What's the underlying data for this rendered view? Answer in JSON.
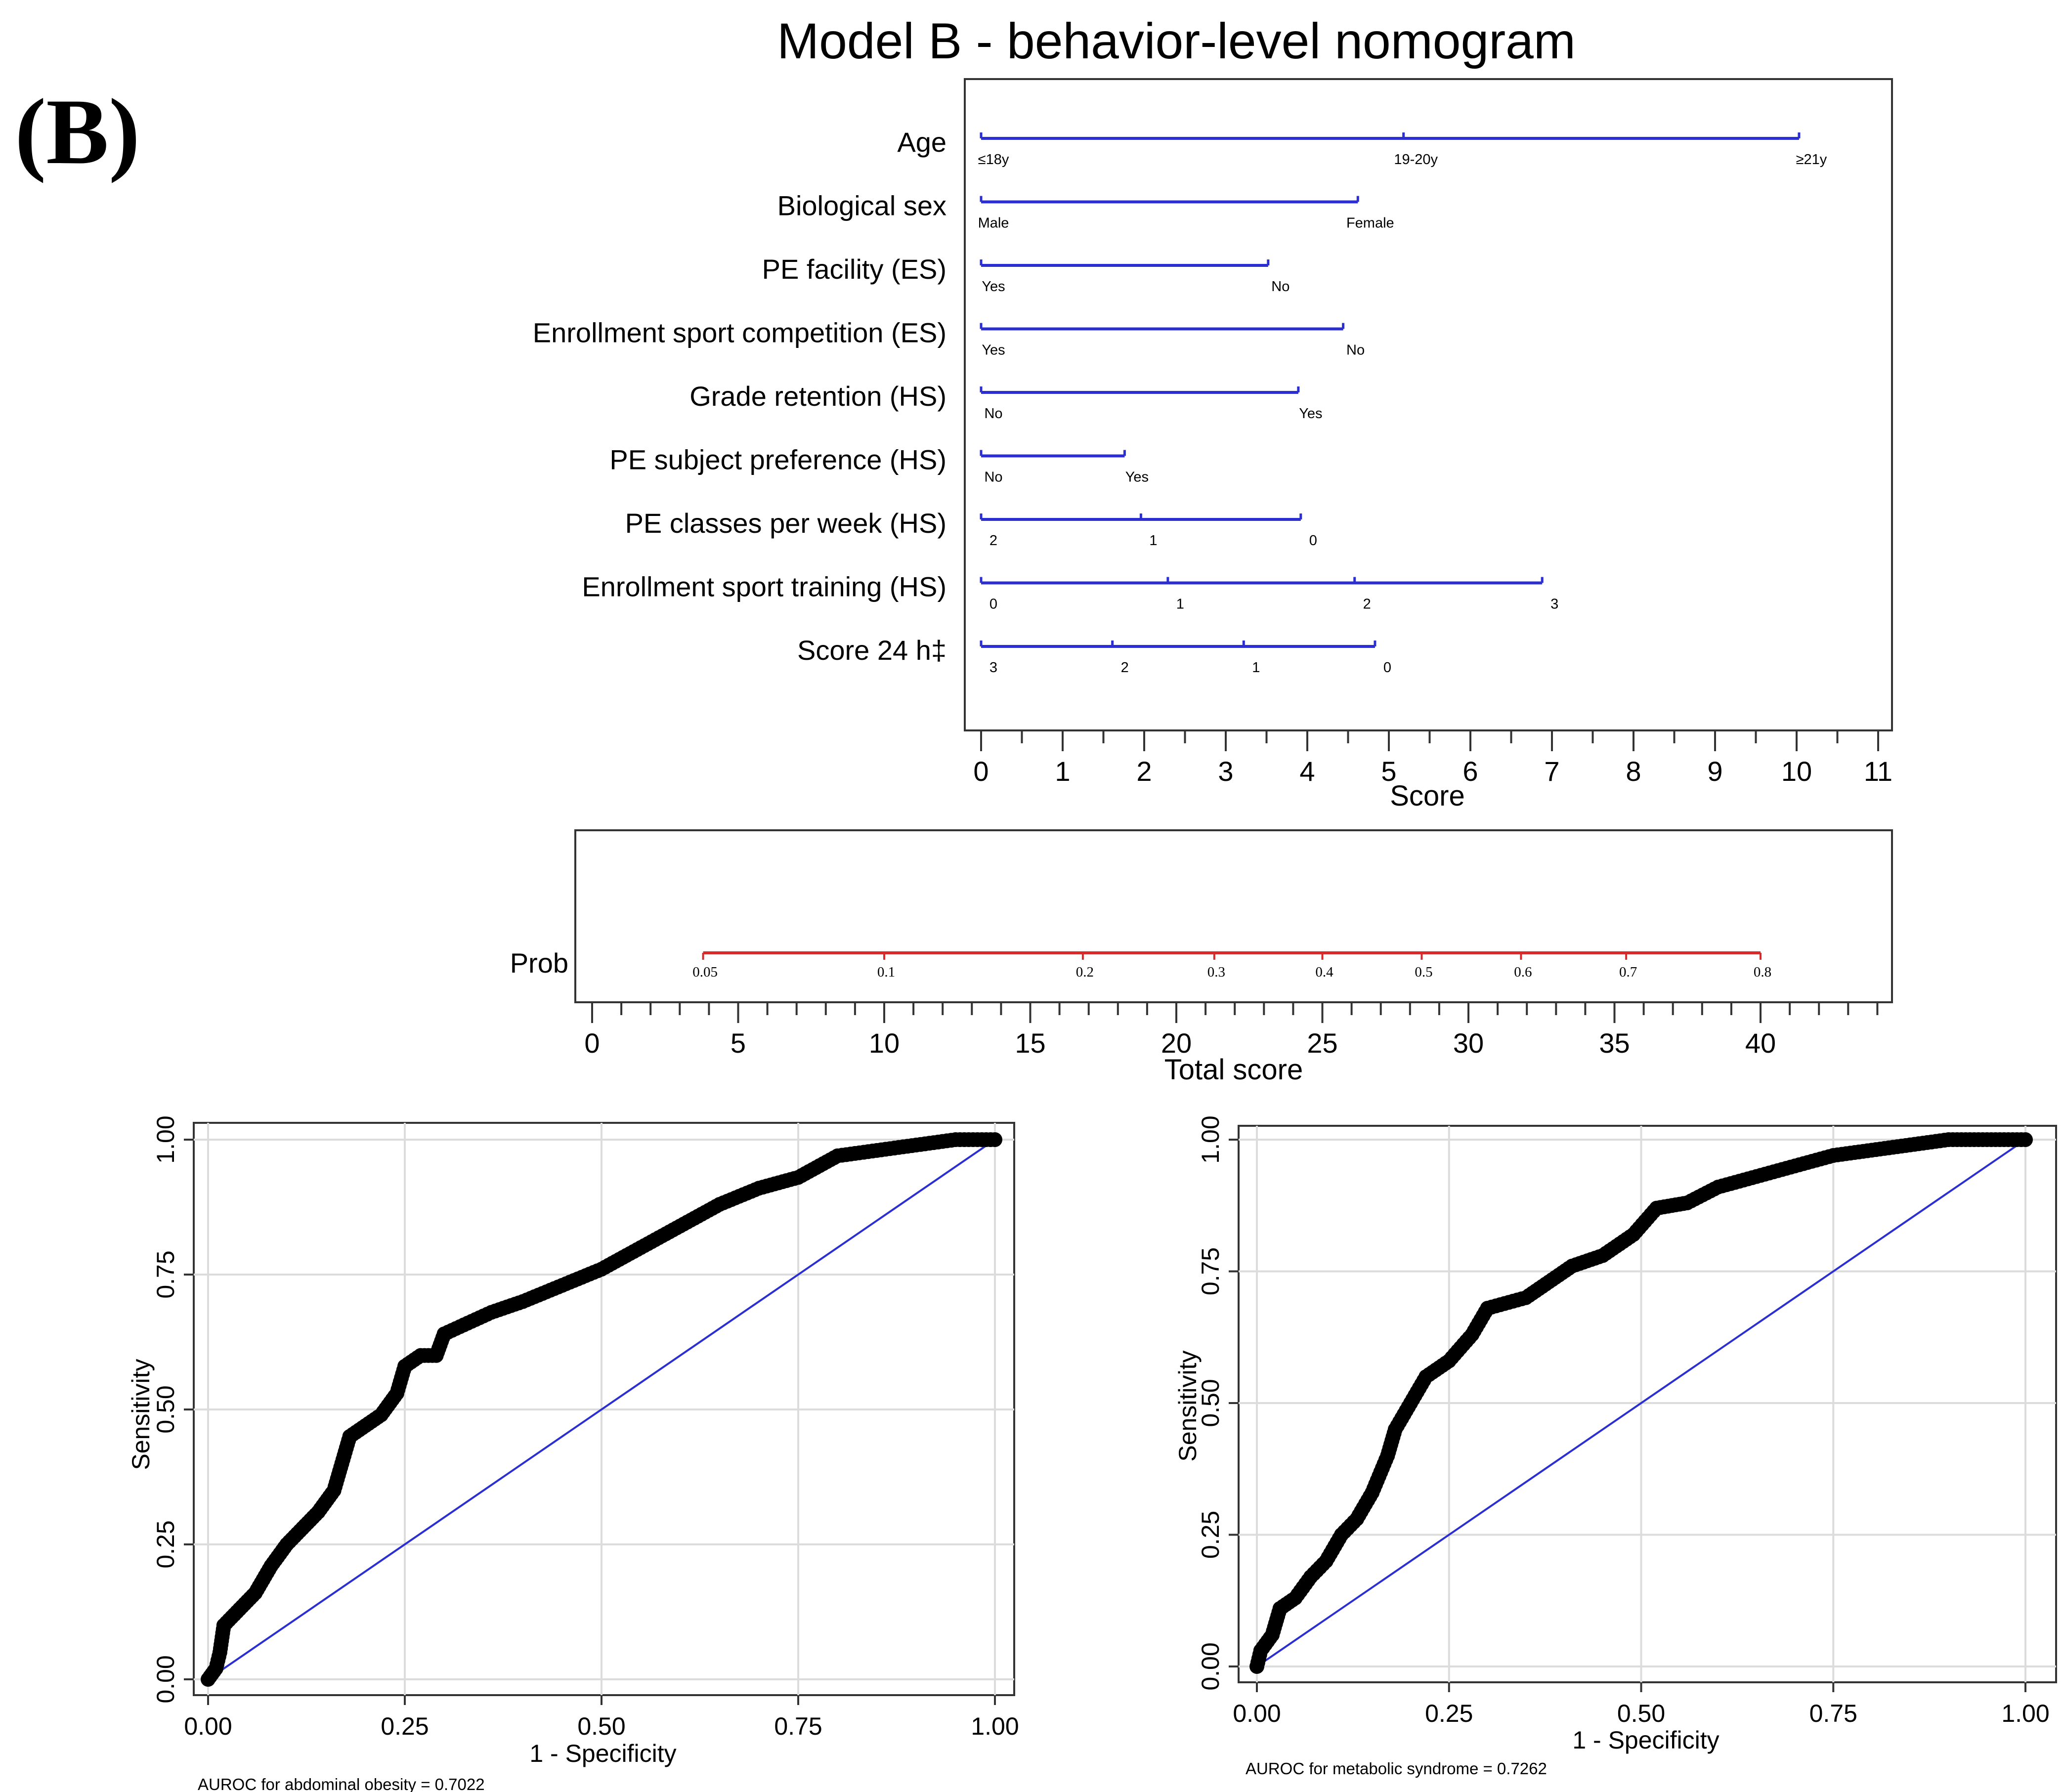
{
  "panel_label": "(B)",
  "colors": {
    "nomogram_lines": "#2b2fd0",
    "prob_line": "#d52b2b",
    "roc_points": "#000000",
    "reference_line": "#2b2fd0",
    "grid": "#dcdcdc",
    "frame": "#333333"
  },
  "chart_data": [
    {
      "type": "nomogram",
      "title": "Model B - behavior-level nomogram",
      "xlabel": "Score",
      "xlim": [
        0,
        11
      ],
      "ticks": [
        "0",
        "1",
        "2",
        "3",
        "4",
        "5",
        "6",
        "7",
        "8",
        "9",
        "10",
        "11"
      ],
      "variables": [
        {
          "name": "Age",
          "levels": [
            {
              "label": "≤18y",
              "score": 0
            },
            {
              "label": "19-20y",
              "score": 5.18
            },
            {
              "label": "≥21y",
              "score": 10.03
            }
          ]
        },
        {
          "name": "Biological sex",
          "levels": [
            {
              "label": "Male",
              "score": 0
            },
            {
              "label": "Female",
              "score": 4.62
            }
          ]
        },
        {
          "name": "PE facility (ES)",
          "levels": [
            {
              "label": "Yes",
              "score": 0
            },
            {
              "label": "No",
              "score": 3.52
            }
          ]
        },
        {
          "name": "Enrollment sport competition (ES)",
          "levels": [
            {
              "label": "Yes",
              "score": 0
            },
            {
              "label": "No",
              "score": 4.44
            }
          ]
        },
        {
          "name": "Grade retention (HS)",
          "levels": [
            {
              "label": "No",
              "score": 0
            },
            {
              "label": "Yes",
              "score": 3.89
            }
          ]
        },
        {
          "name": "PE subject preference (HS)",
          "levels": [
            {
              "label": "No",
              "score": 0
            },
            {
              "label": "Yes",
              "score": 1.76
            }
          ]
        },
        {
          "name": "PE classes per week (HS)",
          "levels": [
            {
              "label": "2",
              "score": 0
            },
            {
              "label": "1",
              "score": 1.96
            },
            {
              "label": "0",
              "score": 3.92
            }
          ]
        },
        {
          "name": "Enrollment sport training (HS)",
          "levels": [
            {
              "label": "0",
              "score": 0
            },
            {
              "label": "1",
              "score": 2.29
            },
            {
              "label": "2",
              "score": 4.58
            },
            {
              "label": "3",
              "score": 6.88
            }
          ]
        },
        {
          "name": "Score 24 h‡",
          "levels": [
            {
              "label": "3",
              "score": 0
            },
            {
              "label": "2",
              "score": 1.61
            },
            {
              "label": "1",
              "score": 3.22
            },
            {
              "label": "0",
              "score": 4.83
            }
          ]
        }
      ]
    },
    {
      "type": "nomogram-probability",
      "row_label": "Prob",
      "xlabel": "Total score",
      "xlim": [
        0,
        40
      ],
      "ticks": [
        "0",
        "5",
        "10",
        "15",
        "20",
        "25",
        "30",
        "35",
        "40"
      ],
      "probabilities": [
        {
          "label": "0.05",
          "total": 3.8
        },
        {
          "label": "0.1",
          "total": 10.0
        },
        {
          "label": "0.2",
          "total": 16.8
        },
        {
          "label": "0.3",
          "total": 21.3
        },
        {
          "label": "0.4",
          "total": 25.0
        },
        {
          "label": "0.5",
          "total": 28.4
        },
        {
          "label": "0.6",
          "total": 31.8
        },
        {
          "label": "0.7",
          "total": 35.4
        },
        {
          "label": "0.8",
          "total": 40.0
        }
      ]
    },
    {
      "type": "scatter",
      "xlabel": "1 - Specificity",
      "ylabel": "Sensitivity",
      "xlim": [
        0,
        1
      ],
      "ylim": [
        0,
        1
      ],
      "xticks": [
        "0.00",
        "0.25",
        "0.50",
        "0.75",
        "1.00"
      ],
      "yticks": [
        "0.00",
        "0.25",
        "0.50",
        "0.75",
        "1.00"
      ],
      "caption": "AUROC for abdominal obesity = 0.7022",
      "curve": [
        [
          0,
          0
        ],
        [
          0.01,
          0.02
        ],
        [
          0.015,
          0.05
        ],
        [
          0.02,
          0.1
        ],
        [
          0.04,
          0.13
        ],
        [
          0.06,
          0.16
        ],
        [
          0.08,
          0.21
        ],
        [
          0.1,
          0.25
        ],
        [
          0.12,
          0.28
        ],
        [
          0.14,
          0.31
        ],
        [
          0.16,
          0.35
        ],
        [
          0.17,
          0.4
        ],
        [
          0.18,
          0.45
        ],
        [
          0.2,
          0.47
        ],
        [
          0.22,
          0.49
        ],
        [
          0.24,
          0.53
        ],
        [
          0.25,
          0.58
        ],
        [
          0.27,
          0.6
        ],
        [
          0.29,
          0.6
        ],
        [
          0.3,
          0.64
        ],
        [
          0.33,
          0.66
        ],
        [
          0.36,
          0.68
        ],
        [
          0.4,
          0.7
        ],
        [
          0.45,
          0.73
        ],
        [
          0.5,
          0.76
        ],
        [
          0.55,
          0.8
        ],
        [
          0.6,
          0.84
        ],
        [
          0.65,
          0.88
        ],
        [
          0.7,
          0.91
        ],
        [
          0.75,
          0.93
        ],
        [
          0.8,
          0.97
        ],
        [
          0.85,
          0.98
        ],
        [
          0.9,
          0.99
        ],
        [
          0.95,
          1.0
        ],
        [
          1.0,
          1.0
        ]
      ],
      "reference_line": [
        [
          0,
          0
        ],
        [
          1,
          1
        ]
      ]
    },
    {
      "type": "scatter",
      "xlabel": "1 - Specificity",
      "ylabel": "Sensitivity",
      "xlim": [
        0,
        1
      ],
      "ylim": [
        0,
        1
      ],
      "xticks": [
        "0.00",
        "0.25",
        "0.50",
        "0.75",
        "1.00"
      ],
      "yticks": [
        "0.00",
        "0.25",
        "0.50",
        "0.75",
        "1.00"
      ],
      "caption": "AUROC for metabolic syndrome = 0.7262",
      "curve": [
        [
          0,
          0
        ],
        [
          0.005,
          0.03
        ],
        [
          0.02,
          0.06
        ],
        [
          0.03,
          0.11
        ],
        [
          0.05,
          0.13
        ],
        [
          0.07,
          0.17
        ],
        [
          0.09,
          0.2
        ],
        [
          0.11,
          0.25
        ],
        [
          0.13,
          0.28
        ],
        [
          0.15,
          0.33
        ],
        [
          0.17,
          0.4
        ],
        [
          0.18,
          0.45
        ],
        [
          0.2,
          0.5
        ],
        [
          0.22,
          0.55
        ],
        [
          0.25,
          0.58
        ],
        [
          0.28,
          0.63
        ],
        [
          0.3,
          0.68
        ],
        [
          0.35,
          0.7
        ],
        [
          0.38,
          0.73
        ],
        [
          0.41,
          0.76
        ],
        [
          0.45,
          0.78
        ],
        [
          0.49,
          0.82
        ],
        [
          0.52,
          0.87
        ],
        [
          0.56,
          0.88
        ],
        [
          0.6,
          0.91
        ],
        [
          0.65,
          0.93
        ],
        [
          0.7,
          0.95
        ],
        [
          0.75,
          0.97
        ],
        [
          0.8,
          0.98
        ],
        [
          0.85,
          0.99
        ],
        [
          0.9,
          1.0
        ],
        [
          1.0,
          1.0
        ]
      ],
      "reference_line": [
        [
          0,
          0
        ],
        [
          1,
          1
        ]
      ]
    }
  ]
}
